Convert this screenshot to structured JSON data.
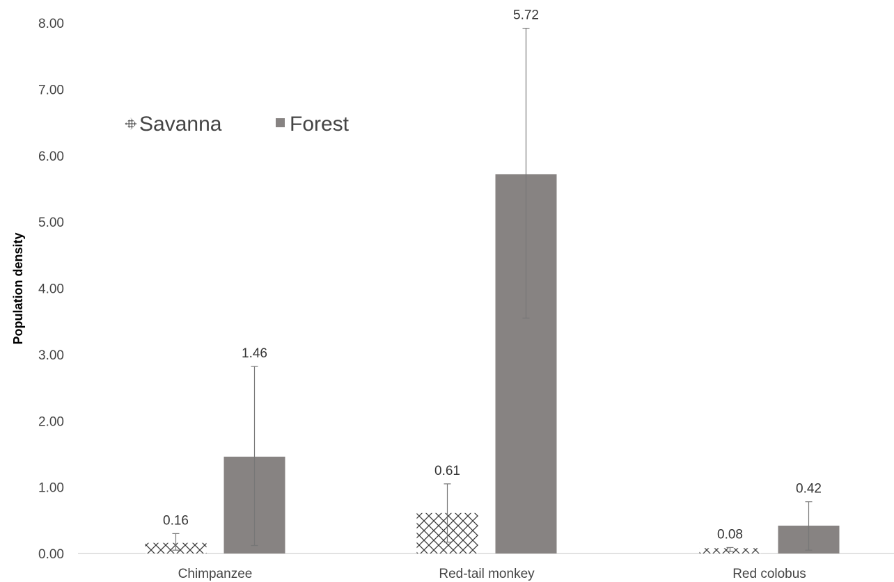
{
  "chart_data": {
    "type": "bar",
    "title": "",
    "xlabel": "",
    "ylabel": "Population density",
    "ylim": [
      0,
      8
    ],
    "yticks": [
      "0.00",
      "1.00",
      "2.00",
      "3.00",
      "4.00",
      "5.00",
      "6.00",
      "7.00",
      "8.00"
    ],
    "categories": [
      "Chimpanzee",
      "Red-tail monkey",
      "Red colobus"
    ],
    "series": [
      {
        "name": "Savanna",
        "pattern": "crosshatch",
        "color": "#ffffff",
        "stroke": "#333333",
        "values": [
          0.16,
          0.61,
          0.08
        ],
        "labels": [
          "0.16",
          "0.61",
          "0.08"
        ],
        "error_low": [
          0.05,
          0.17,
          0.03
        ],
        "error_high": [
          0.3,
          1.05,
          0.09
        ]
      },
      {
        "name": "Forest",
        "pattern": "solid",
        "color": "#878382",
        "values": [
          1.46,
          5.72,
          0.42
        ],
        "labels": [
          "1.46",
          "5.72",
          "0.42"
        ],
        "error_low": [
          0.12,
          3.55,
          0.05
        ],
        "error_high": [
          2.82,
          7.92,
          0.78
        ]
      }
    ],
    "legend": {
      "position": "top-left",
      "orientation": "horizontal"
    },
    "grid": false,
    "baseline_color": "#d9d9d9",
    "error_bar_color": "#777777"
  }
}
